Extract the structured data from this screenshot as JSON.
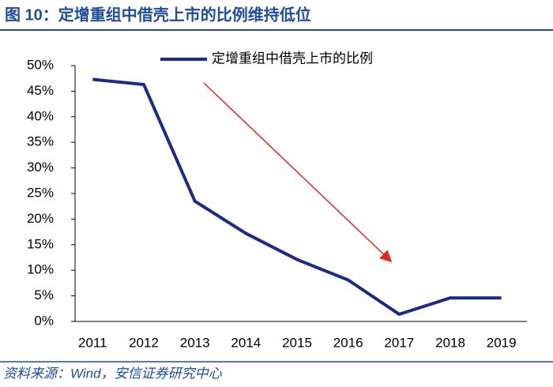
{
  "chart_data": {
    "type": "line",
    "title": "图 10：定增重组中借壳上市的比例维持低位",
    "source": "资料来源：Wind，安信证券研究中心",
    "categories": [
      "2011",
      "2012",
      "2013",
      "2014",
      "2015",
      "2016",
      "2017",
      "2018",
      "2019"
    ],
    "series": [
      {
        "name": "定增重组中借壳上市的比例",
        "color": "#1c2a8c",
        "values": [
          47.3,
          46.3,
          23.5,
          17.2,
          12.1,
          8.1,
          1.4,
          4.6,
          4.6
        ]
      }
    ],
    "ylim": [
      0,
      50
    ],
    "yticks": [
      {
        "value": 0,
        "label": "0%"
      },
      {
        "value": 5,
        "label": "5%"
      },
      {
        "value": 10,
        "label": "10%"
      },
      {
        "value": 15,
        "label": "15%"
      },
      {
        "value": 20,
        "label": "20%"
      },
      {
        "value": 25,
        "label": "25%"
      },
      {
        "value": 30,
        "label": "30%"
      },
      {
        "value": 35,
        "label": "35%"
      },
      {
        "value": 40,
        "label": "40%"
      },
      {
        "value": 45,
        "label": "45%"
      },
      {
        "value": 50,
        "label": "50%"
      }
    ],
    "grid": false
  }
}
